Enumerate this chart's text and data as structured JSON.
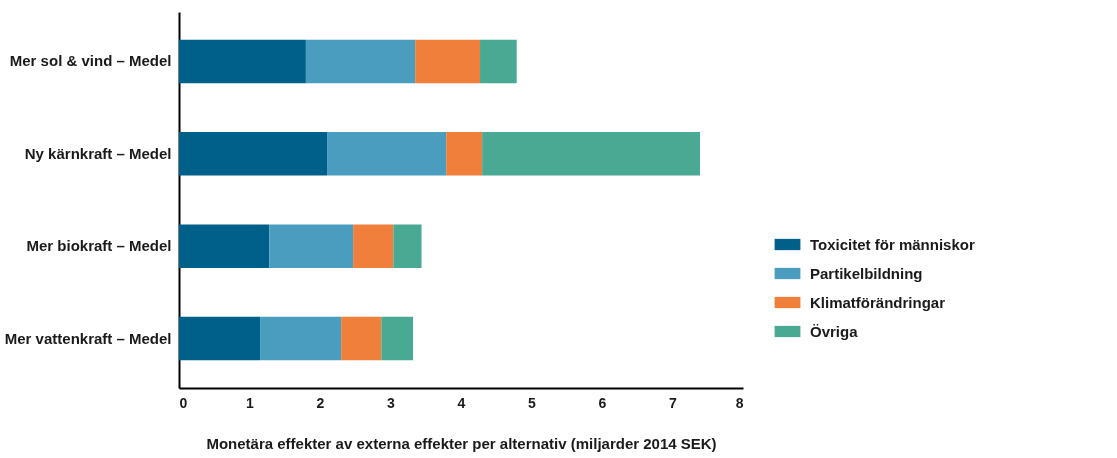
{
  "chart_data": {
    "type": "bar",
    "orientation": "horizontal",
    "stacked": true,
    "xlabel": "Monetära effekter av externa effekter per alternativ (miljarder 2014 SEK)",
    "categories": [
      "Mer sol & vind – Medel",
      "Ny kärnkraft – Medel",
      "Mer biokraft – Medel",
      "Mer vattenkraft – Medel"
    ],
    "series": [
      {
        "name": "Toxicitet för människor",
        "color": "#006089",
        "values": [
          1.8,
          2.1,
          1.28,
          1.15
        ]
      },
      {
        "name": "Partikelbildning",
        "color": "#4b9dbf",
        "values": [
          1.55,
          1.69,
          1.19,
          1.15
        ]
      },
      {
        "name": "Klimatförändringar",
        "color": "#f07f3c",
        "values": [
          0.92,
          0.51,
          0.57,
          0.57
        ]
      },
      {
        "name": "Övriga",
        "color": "#4aa993",
        "values": [
          0.52,
          3.09,
          0.4,
          0.45
        ]
      }
    ],
    "xlim": [
      0,
      8
    ],
    "xticks": [
      0,
      1,
      2,
      3,
      4,
      5,
      6,
      7,
      8
    ],
    "grid": false,
    "legend": "right"
  }
}
